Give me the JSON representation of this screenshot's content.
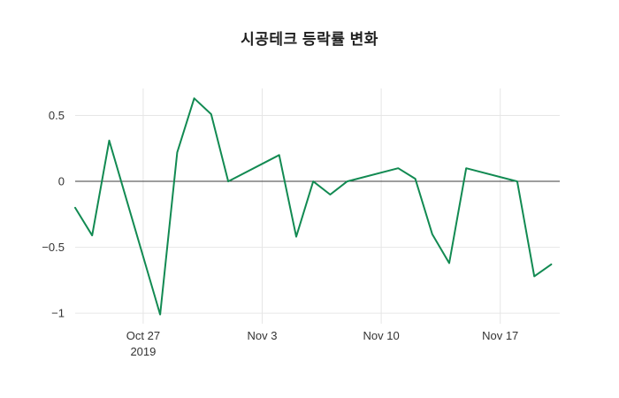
{
  "title": "시공테크 등락률 변화",
  "chart_data": {
    "type": "line",
    "title": "시공테크 등락률 변화",
    "xlabel": "",
    "ylabel": "",
    "legend": false,
    "grid": true,
    "line_color": "#128a52",
    "grid_color": "#e6e6e6",
    "zero_line_color": "#3d3d3d",
    "tick_color": "#333333",
    "x_range": [
      0,
      28.5
    ],
    "y_range": [
      -1.08,
      0.705
    ],
    "series": [
      {
        "name": "등락률",
        "x_day_offsets": [
          0,
          1,
          2,
          5,
          6,
          7,
          8,
          9,
          12,
          13,
          14,
          15,
          16,
          19,
          20,
          21,
          22,
          23,
          26,
          27,
          28
        ],
        "x_dates": [
          "2019-10-23",
          "2019-10-24",
          "2019-10-25",
          "2019-10-28",
          "2019-10-29",
          "2019-10-30",
          "2019-10-31",
          "2019-11-01",
          "2019-11-04",
          "2019-11-05",
          "2019-11-06",
          "2019-11-07",
          "2019-11-08",
          "2019-11-11",
          "2019-11-12",
          "2019-11-13",
          "2019-11-14",
          "2019-11-15",
          "2019-11-18",
          "2019-11-19",
          "2019-11-20"
        ],
        "values": [
          -0.2,
          -0.41,
          0.31,
          -1.01,
          0.22,
          0.63,
          0.51,
          0.0,
          0.2,
          -0.42,
          0.0,
          -0.1,
          0.0,
          0.1,
          0.02,
          -0.4,
          -0.62,
          0.1,
          0.0,
          -0.72,
          -0.63
        ]
      }
    ],
    "x_ticks": [
      {
        "pos": 4,
        "label": "Oct 27",
        "sublabel": "2019"
      },
      {
        "pos": 11,
        "label": "Nov 3",
        "sublabel": ""
      },
      {
        "pos": 18,
        "label": "Nov 10",
        "sublabel": ""
      },
      {
        "pos": 25,
        "label": "Nov 17",
        "sublabel": ""
      }
    ],
    "y_ticks": [
      {
        "value": 0.5,
        "label": "0.5"
      },
      {
        "value": 0,
        "label": "0"
      },
      {
        "value": -0.5,
        "label": "−0.5"
      },
      {
        "value": -1,
        "label": "−1"
      }
    ]
  }
}
